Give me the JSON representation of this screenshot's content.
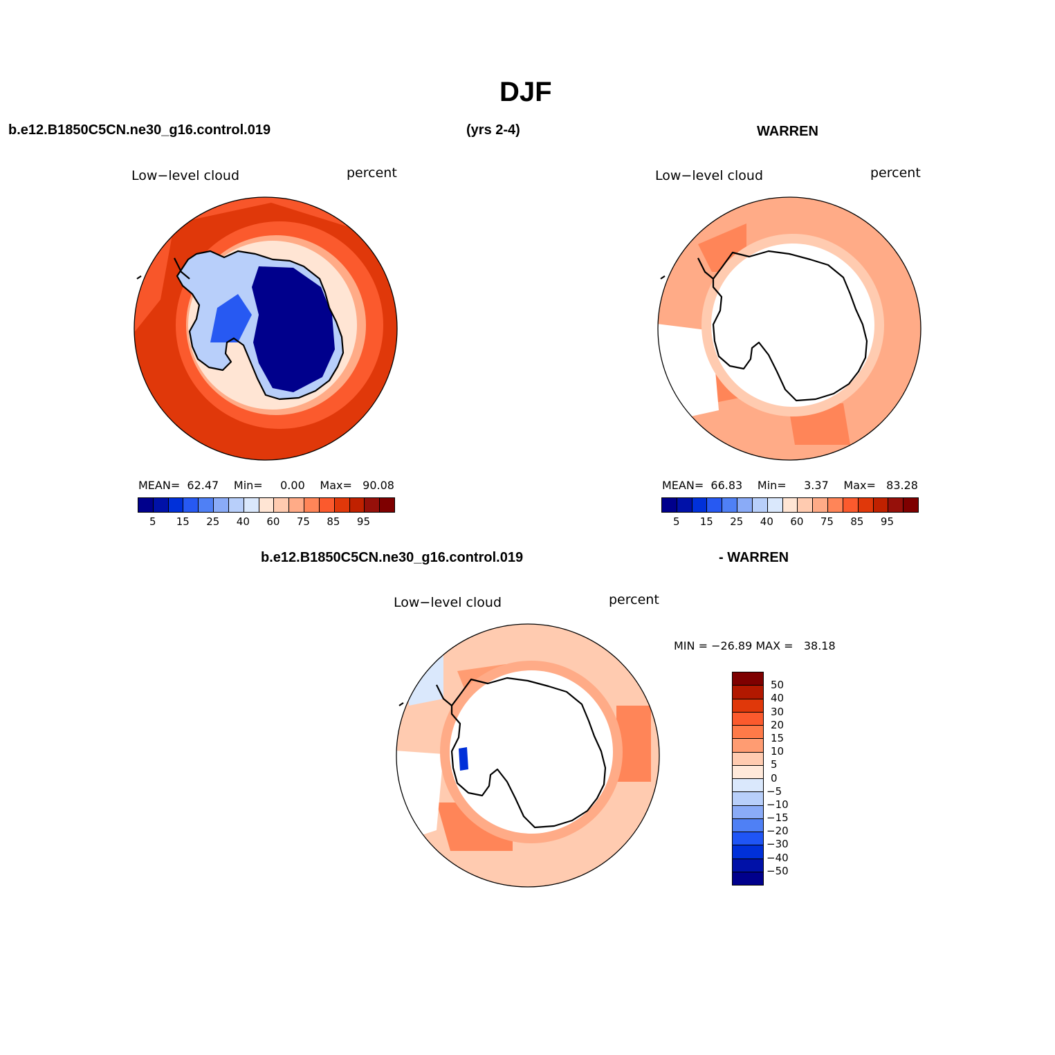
{
  "page_title": "DJF",
  "header": {
    "case_name": "b.e12.B1850C5CN.ne30_g16.control.019",
    "years": "(yrs 2-4)",
    "obs_name": "WARREN"
  },
  "diff_header": {
    "case_name": "b.e12.B1850C5CN.ne30_g16.control.019",
    "obs_name": "- WARREN"
  },
  "panels": {
    "model": {
      "variable": "Low−level cloud",
      "units": "percent",
      "mean_label": "MEAN=",
      "mean": "62.47",
      "min_label": "Min=",
      "min": "0.00",
      "max_label": "Max=",
      "max": "90.08"
    },
    "obs": {
      "variable": "Low−level cloud",
      "units": "percent",
      "mean_label": "MEAN=",
      "mean": "66.83",
      "min_label": "Min=",
      "min": "3.37",
      "max_label": "Max=",
      "max": "83.28"
    },
    "diff": {
      "variable": "Low−level cloud",
      "units": "percent",
      "minmax": "MIN = −26.89 MAX =   38.18"
    }
  },
  "colorbar_abs": {
    "colors": [
      "#00008c",
      "#0011a8",
      "#0030d9",
      "#2759f2",
      "#4f80f5",
      "#8aabf7",
      "#b8cffa",
      "#dae8fc",
      "#ffe5d4",
      "#ffcbb0",
      "#ffab87",
      "#ff8558",
      "#fb5a2d",
      "#e0380a",
      "#c02100",
      "#96100a",
      "#7e0000"
    ],
    "tick_labels": [
      "5",
      "15",
      "25",
      "40",
      "60",
      "75",
      "85",
      "95"
    ]
  },
  "colorbar_diff": {
    "colors_top_to_bottom": [
      "#7e0000",
      "#b21800",
      "#e0380a",
      "#fb5a2d",
      "#ff7a48",
      "#ff9c72",
      "#ffcbb0",
      "#ffe9da",
      "#dae8fc",
      "#b8cffa",
      "#8aabf7",
      "#4f80f5",
      "#1f55f5",
      "#0030d9",
      "#0011a8",
      "#00008c"
    ],
    "tick_labels": [
      "50",
      "40",
      "30",
      "20",
      "15",
      "10",
      "5",
      "0",
      "−5",
      "−10",
      "−15",
      "−20",
      "−30",
      "−40",
      "−50"
    ]
  },
  "map_colors": {
    "ocean_model": "#e0380a",
    "ocean_model_light": "#fb5a2d",
    "ocean_obs": "#ffab87",
    "ocean_obs_dark": "#ff8558",
    "ocean_diff": "#ffcbb0",
    "ocean_diff_dark": "#ff8558",
    "ice_dark": "#00008c",
    "ice_mid": "#2759f2",
    "ice_light": "#b8cffa",
    "missing": "#ffffff",
    "coast": "#000000"
  }
}
